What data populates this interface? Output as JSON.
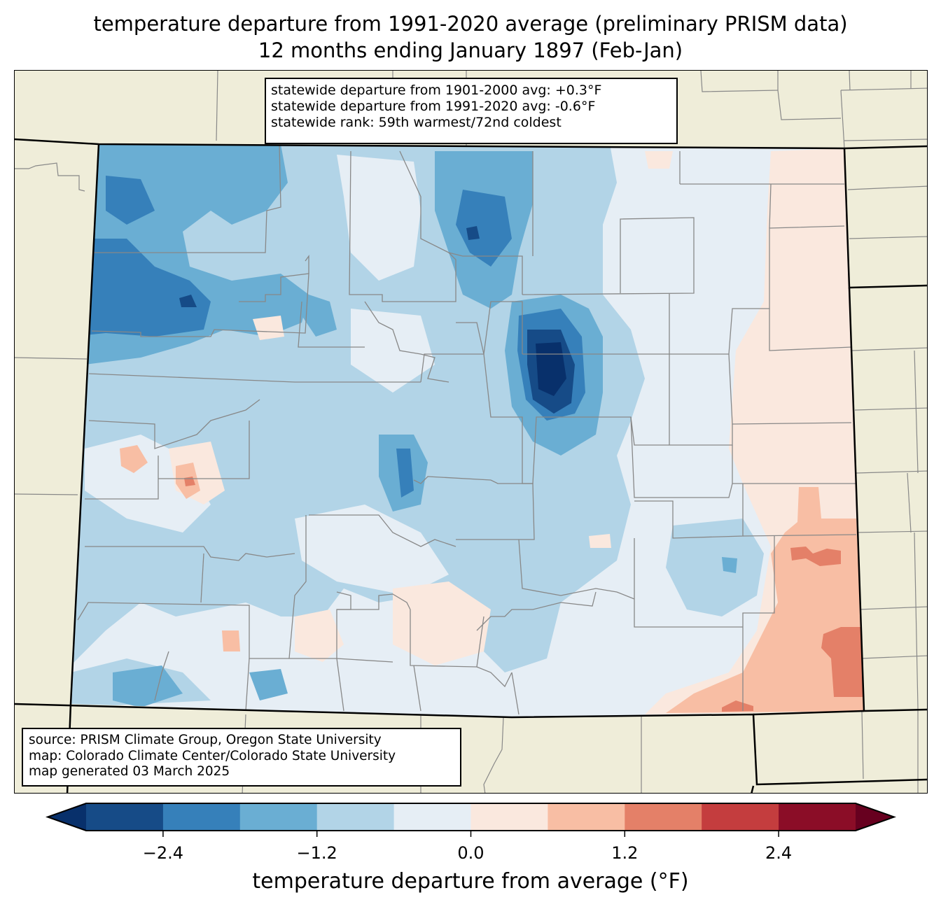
{
  "title": {
    "line1": "temperature departure from 1991-2020 average (preliminary PRISM data)",
    "line2": "12 months ending January 1897 (Feb-Jan)"
  },
  "stats": {
    "line1": "statewide departure from 1901-2000 avg: +0.3°F",
    "line2": "statewide departure from 1991-2020 avg: -0.6°F",
    "line3": "statewide rank: 59th warmest/72nd coldest"
  },
  "credits": {
    "line1": "source: PRISM Climate Group, Oregon State University",
    "line2": "map: Colorado Climate Center/Colorado State University",
    "line3": "map generated 03 March 2025"
  },
  "colorbar": {
    "label": "temperature departure from average (°F)",
    "bounds": [
      -3.0,
      -2.4,
      -1.8,
      -1.2,
      -0.6,
      0.0,
      0.6,
      1.2,
      1.8,
      2.4,
      3.0
    ],
    "ticks": [
      {
        "value": -2.4,
        "label": "−2.4"
      },
      {
        "value": -1.2,
        "label": "−1.2"
      },
      {
        "value": 0.0,
        "label": "0.0"
      },
      {
        "value": 1.2,
        "label": "1.2"
      },
      {
        "value": 2.4,
        "label": "2.4"
      }
    ],
    "colors": [
      "#164b87",
      "#3680ba",
      "#6aaed3",
      "#b2d4e7",
      "#e6eef5",
      "#fae8de",
      "#f8bea4",
      "#e48068",
      "#c43d3e",
      "#8b0d27"
    ],
    "under_color": "#08306b",
    "over_color": "#67001f"
  },
  "map": {
    "background_color": "#efedd9",
    "state_fill_base": "#b2d4e7"
  }
}
